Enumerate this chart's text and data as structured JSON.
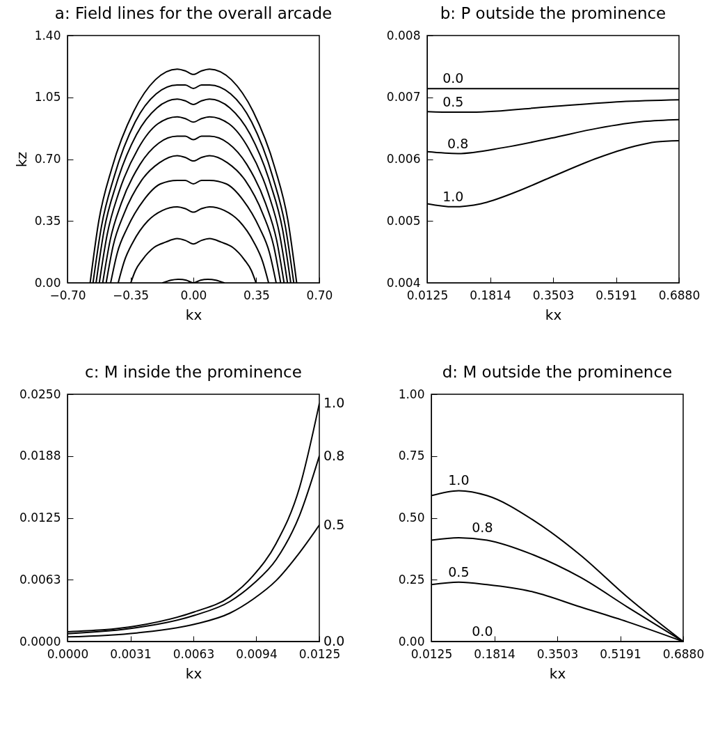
{
  "chart_data": [
    {
      "type": "line",
      "title": "a: Field lines for the overall arcade",
      "xlabel": "kx",
      "ylabel": "kz",
      "xlim": [
        -0.7,
        0.7
      ],
      "ylim": [
        0,
        1.4
      ],
      "xticks": [
        {
          "value": -0.7,
          "label": "−0.70"
        },
        {
          "value": -0.35,
          "label": "−0.35"
        },
        {
          "value": 0,
          "label": "0.00"
        },
        {
          "value": 0.35,
          "label": "0.35"
        },
        {
          "value": 0.7,
          "label": "0.70"
        }
      ],
      "yticks": [
        {
          "value": 0,
          "label": "0.00"
        },
        {
          "value": 0.35,
          "label": "0.35"
        },
        {
          "value": 0.7,
          "label": "0.70"
        },
        {
          "value": 1.05,
          "label": "1.05"
        },
        {
          "value": 1.4,
          "label": "1.40"
        }
      ],
      "series": [
        {
          "color": "#000000",
          "x": [
            -0.574,
            -0.526,
            -0.453,
            -0.332,
            -0.211,
            -0.09,
            -0.045,
            0,
            0.045,
            0.09,
            0.211,
            0.332,
            0.453,
            0.526,
            0.574
          ],
          "values": [
            0,
            0.35,
            0.65,
            0.97,
            1.15,
            1.21,
            1.2,
            1.18,
            1.2,
            1.21,
            1.15,
            0.97,
            0.65,
            0.35,
            0
          ]
        },
        {
          "color": "#000000",
          "x": [
            -0.558,
            -0.511,
            -0.441,
            -0.324,
            -0.207,
            -0.09,
            -0.045,
            0,
            0.045,
            0.09,
            0.207,
            0.324,
            0.441,
            0.511,
            0.558
          ],
          "values": [
            0,
            0.32,
            0.6,
            0.91,
            1.07,
            1.12,
            1.12,
            1.1,
            1.12,
            1.12,
            1.07,
            0.91,
            0.6,
            0.32,
            0
          ]
        },
        {
          "color": "#000000",
          "x": [
            -0.541,
            -0.496,
            -0.428,
            -0.316,
            -0.203,
            -0.09,
            -0.045,
            0,
            0.045,
            0.09,
            0.203,
            0.316,
            0.428,
            0.496,
            0.541
          ],
          "values": [
            0,
            0.3,
            0.56,
            0.84,
            0.99,
            1.04,
            1.03,
            1.01,
            1.03,
            1.04,
            0.99,
            0.84,
            0.56,
            0.3,
            0
          ]
        },
        {
          "color": "#000000",
          "x": [
            -0.523,
            -0.48,
            -0.415,
            -0.307,
            -0.198,
            -0.09,
            -0.045,
            0,
            0.045,
            0.09,
            0.198,
            0.307,
            0.415,
            0.48,
            0.523
          ],
          "values": [
            0,
            0.27,
            0.51,
            0.76,
            0.9,
            0.94,
            0.93,
            0.91,
            0.93,
            0.94,
            0.9,
            0.76,
            0.51,
            0.27,
            0
          ]
        },
        {
          "color": "#000000",
          "x": [
            -0.504,
            -0.463,
            -0.401,
            -0.297,
            -0.194,
            -0.09,
            -0.045,
            0,
            0.045,
            0.09,
            0.194,
            0.297,
            0.401,
            0.463,
            0.504
          ],
          "values": [
            0,
            0.24,
            0.45,
            0.67,
            0.79,
            0.83,
            0.83,
            0.81,
            0.83,
            0.83,
            0.79,
            0.67,
            0.45,
            0.24,
            0
          ]
        },
        {
          "color": "#000000",
          "x": [
            -0.485,
            -0.446,
            -0.386,
            -0.288,
            -0.189,
            -0.09,
            -0.045,
            0,
            0.045,
            0.09,
            0.189,
            0.288,
            0.386,
            0.446,
            0.485
          ],
          "values": [
            0,
            0.21,
            0.39,
            0.58,
            0.68,
            0.72,
            0.71,
            0.69,
            0.71,
            0.72,
            0.68,
            0.58,
            0.39,
            0.21,
            0
          ]
        },
        {
          "color": "#000000",
          "x": [
            -0.46,
            -0.423,
            -0.368,
            -0.275,
            -0.183,
            -0.09,
            -0.045,
            0,
            0.045,
            0.09,
            0.183,
            0.275,
            0.368,
            0.423,
            0.46
          ],
          "values": [
            0,
            0.17,
            0.31,
            0.47,
            0.56,
            0.58,
            0.58,
            0.56,
            0.58,
            0.58,
            0.56,
            0.47,
            0.31,
            0.17,
            0
          ]
        },
        {
          "color": "#000000",
          "x": [
            -0.418,
            -0.385,
            -0.336,
            -0.254,
            -0.172,
            -0.09,
            -0.045,
            0,
            0.045,
            0.09,
            0.172,
            0.254,
            0.336,
            0.385,
            0.418
          ],
          "values": [
            0,
            0.12,
            0.23,
            0.35,
            0.41,
            0.43,
            0.42,
            0.4,
            0.42,
            0.43,
            0.41,
            0.35,
            0.23,
            0.12,
            0
          ]
        },
        {
          "color": "#000000",
          "x": [
            -0.348,
            -0.322,
            -0.284,
            -0.219,
            -0.155,
            -0.09,
            -0.045,
            0,
            0.045,
            0.09,
            0.155,
            0.219,
            0.284,
            0.322,
            0.348
          ],
          "values": [
            0,
            0.07,
            0.13,
            0.2,
            0.23,
            0.25,
            0.24,
            0.22,
            0.24,
            0.25,
            0.23,
            0.2,
            0.13,
            0.07,
            0
          ]
        },
        {
          "color": "#000000",
          "x": [
            -0.17,
            -0.125,
            -0.08,
            -0.04,
            0,
            0.04,
            0.08,
            0.125,
            0.17
          ],
          "values": [
            0,
            0.015,
            0.02,
            0.015,
            0,
            0.015,
            0.02,
            0.015,
            0
          ]
        }
      ]
    },
    {
      "type": "line",
      "title": "b: P outside the prominence",
      "xlabel": "kx",
      "xlim": [
        0.0125,
        0.688
      ],
      "ylim": [
        0.004,
        0.008
      ],
      "xticks": [
        {
          "value": 0.0125,
          "label": "0.0125"
        },
        {
          "value": 0.181375,
          "label": "0.1814"
        },
        {
          "value": 0.35025,
          "label": "0.3503"
        },
        {
          "value": 0.519125,
          "label": "0.5191"
        },
        {
          "value": 0.688,
          "label": "0.6880"
        }
      ],
      "yticks": [
        0.004,
        0.005,
        0.006,
        0.007,
        0.008
      ],
      "series": [
        {
          "name": "0.0",
          "color": "#000000",
          "x": [
            0.0125,
            0.082,
            0.35,
            0.688
          ],
          "values": [
            0.00714,
            0.00714,
            0.00714,
            0.00714
          ]
        },
        {
          "name": "0.5",
          "color": "#000000",
          "x": [
            0.0125,
            0.082,
            0.132,
            0.345,
            0.532,
            0.688
          ],
          "values": [
            0.00677,
            0.00676,
            0.00676,
            0.00685,
            0.00693,
            0.00696
          ]
        },
        {
          "name": "0.8",
          "color": "#000000",
          "x": [
            0.0125,
            0.095,
            0.22,
            0.345,
            0.47,
            0.594,
            0.688
          ],
          "values": [
            0.00612,
            0.00609,
            0.00619,
            0.00634,
            0.0065,
            0.00661,
            0.00664
          ]
        },
        {
          "name": "1.0",
          "color": "#000000",
          "x": [
            0.0125,
            0.082,
            0.157,
            0.251,
            0.345,
            0.47,
            0.563,
            0.626,
            0.688
          ],
          "values": [
            0.00528,
            0.00523,
            0.00528,
            0.00547,
            0.00571,
            0.00602,
            0.0062,
            0.00628,
            0.0063
          ]
        }
      ]
    },
    {
      "type": "line",
      "title": "c: M inside the prominence",
      "xlabel": "kx",
      "xlim": [
        0,
        0.0125
      ],
      "ylim": [
        0,
        0.025
      ],
      "xticks": [
        {
          "value": 0,
          "label": "0.0000"
        },
        {
          "value": 0.003125,
          "label": "0.0031"
        },
        {
          "value": 0.00625,
          "label": "0.0063"
        },
        {
          "value": 0.009375,
          "label": "0.0094"
        },
        {
          "value": 0.0125,
          "label": "0.0125"
        }
      ],
      "yticks": [
        {
          "value": 0,
          "label": "0.0000"
        },
        {
          "value": 0.00625,
          "label": "0.0063"
        },
        0.0125,
        {
          "value": 0.01875,
          "label": "0.0188"
        },
        {
          "value": 0.025,
          "label": "0.0250"
        }
      ],
      "series": [
        {
          "name": "1.0",
          "color": "#000000",
          "x": [
            0,
            0.00344,
            0.00629,
            0.00806,
            0.00921,
            0.01036,
            0.01152,
            0.0125
          ],
          "values": [
            0.00099,
            0.00158,
            0.00299,
            0.00452,
            0.00664,
            0.00993,
            0.01558,
            0.02406
          ]
        },
        {
          "name": "0.8",
          "color": "#000000",
          "x": [
            0,
            0.00344,
            0.00629,
            0.00806,
            0.00921,
            0.01036,
            0.01152,
            0.0125
          ],
          "values": [
            0.0008,
            0.00141,
            0.00264,
            0.00405,
            0.00581,
            0.00829,
            0.01276,
            0.01876
          ]
        },
        {
          "name": "0.5",
          "color": "#000000",
          "x": [
            0,
            0.00344,
            0.00629,
            0.00806,
            0.00921,
            0.01036,
            0.01152,
            0.0125
          ],
          "values": [
            0.00047,
            0.00087,
            0.00174,
            0.00287,
            0.00428,
            0.00617,
            0.00899,
            0.01177
          ]
        },
        {
          "name": "0.0",
          "color": "#000000",
          "x": [
            0,
            0.0125
          ],
          "values": [
            0,
            0
          ]
        }
      ]
    },
    {
      "type": "line",
      "title": "d: M outside the prominence",
      "xlabel": "kx",
      "xlim": [
        0.0125,
        0.688
      ],
      "ylim": [
        0,
        1
      ],
      "xticks": [
        {
          "value": 0.0125,
          "label": "0.0125"
        },
        {
          "value": 0.181375,
          "label": "0.1814"
        },
        {
          "value": 0.35025,
          "label": "0.3503"
        },
        {
          "value": 0.519125,
          "label": "0.5191"
        },
        {
          "value": 0.688,
          "label": "0.6880"
        }
      ],
      "yticks": [
        {
          "value": 0,
          "label": "0.00"
        },
        0.25,
        {
          "value": 0.5,
          "label": "0.50"
        },
        0.75,
        {
          "value": 1,
          "label": "1.00"
        }
      ],
      "series": [
        {
          "name": "1.0",
          "color": "#000000",
          "x": [
            0.0125,
            0.086,
            0.162,
            0.287,
            0.412,
            0.538,
            0.688
          ],
          "values": [
            0.59,
            0.61,
            0.59,
            0.49,
            0.35,
            0.18,
            0
          ]
        },
        {
          "name": "0.8",
          "color": "#000000",
          "x": [
            0.0125,
            0.086,
            0.162,
            0.287,
            0.412,
            0.538,
            0.688
          ],
          "values": [
            0.41,
            0.42,
            0.41,
            0.35,
            0.26,
            0.14,
            0
          ]
        },
        {
          "name": "0.5",
          "color": "#000000",
          "x": [
            0.0125,
            0.086,
            0.162,
            0.287,
            0.412,
            0.538,
            0.688
          ],
          "values": [
            0.23,
            0.24,
            0.23,
            0.2,
            0.14,
            0.08,
            0
          ]
        },
        {
          "name": "0.0",
          "color": "#000000",
          "x": [
            0.0125,
            0.086,
            0.688
          ],
          "values": [
            0,
            0,
            0
          ]
        }
      ]
    }
  ]
}
